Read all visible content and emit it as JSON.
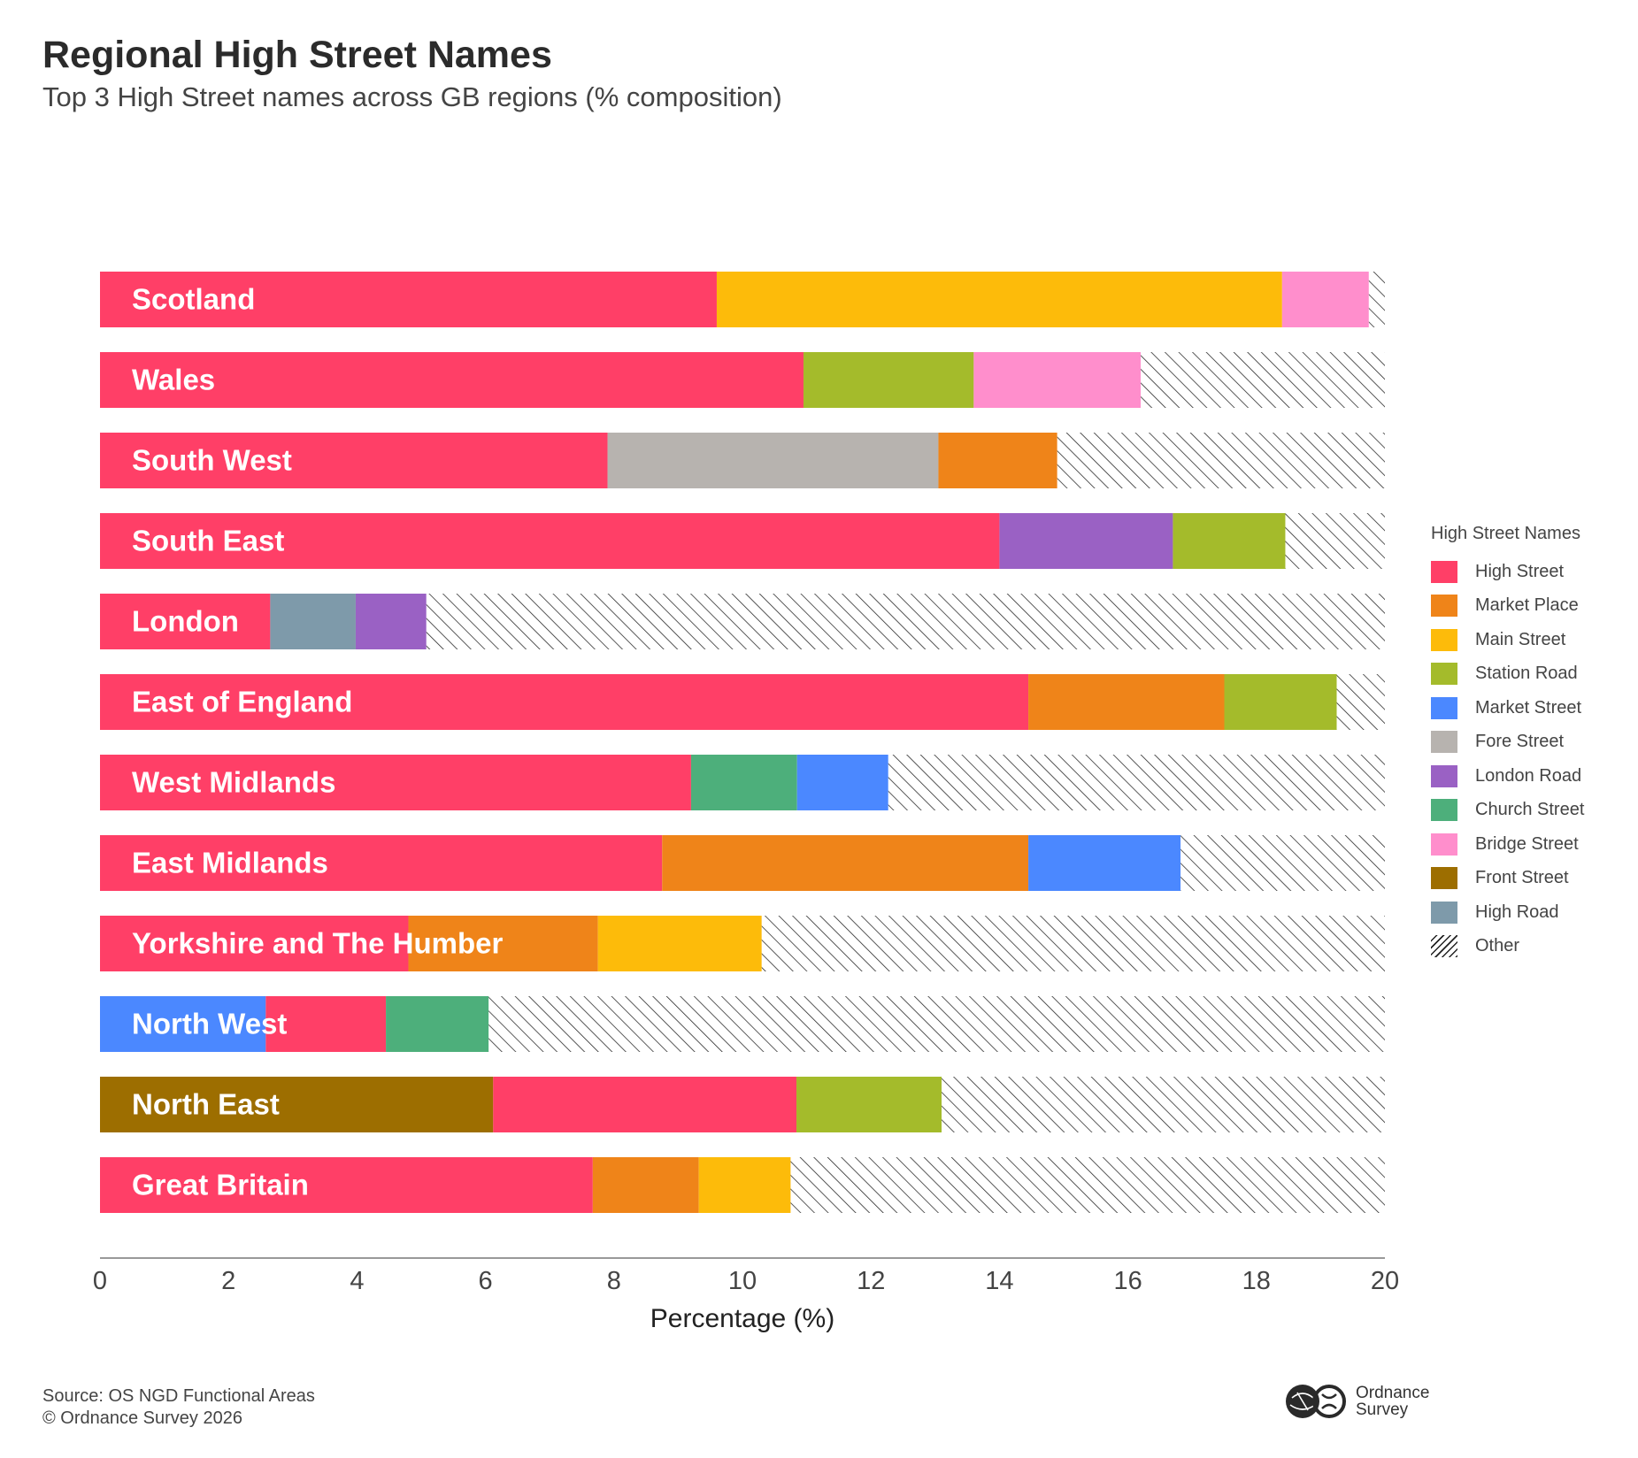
{
  "header": {
    "title": "Regional High Street Names",
    "subtitle": "Top 3 High Street names across GB regions (% composition)"
  },
  "footer": {
    "source_line1": "Source: OS NGD Functional Areas",
    "source_line2": "© Ordnance Survey 2026",
    "logo_line1": "Ordnance",
    "logo_line2": "Survey"
  },
  "legend": {
    "title": "High Street Names",
    "placement": "right",
    "items": [
      {
        "label": "High Street",
        "color": "#FF3F67"
      },
      {
        "label": "Market Place",
        "color": "#EF8419"
      },
      {
        "label": "Main Street",
        "color": "#FDBB0A"
      },
      {
        "label": "Station Road",
        "color": "#A4BB2B"
      },
      {
        "label": "Market Street",
        "color": "#4B88FF"
      },
      {
        "label": "Fore Street",
        "color": "#B7B3AF"
      },
      {
        "label": "London Road",
        "color": "#9A61C4"
      },
      {
        "label": "Church Street",
        "color": "#4DAF7B"
      },
      {
        "label": "Bridge Street",
        "color": "#FF8ECC"
      },
      {
        "label": "Front Street",
        "color": "#9D6E00"
      },
      {
        "label": "High Road",
        "color": "#7E9AAA"
      },
      {
        "label": "Other",
        "color": "hatch"
      }
    ]
  },
  "chart_data": {
    "type": "bar",
    "orientation": "horizontal",
    "stacked": true,
    "title": "Regional High Street Names",
    "subtitle": "Top 3 High Street names across GB regions (% composition)",
    "xlabel": "Percentage (%)",
    "ylabel": "",
    "xlim": [
      0,
      20
    ],
    "xticks": [
      0,
      2,
      4,
      6,
      8,
      10,
      12,
      14,
      16,
      18,
      20
    ],
    "grid": false,
    "colors": {
      "High Street": "#FF3F67",
      "Market Place": "#EF8419",
      "Main Street": "#FDBB0A",
      "Station Road": "#A4BB2B",
      "Market Street": "#4B88FF",
      "Fore Street": "#B7B3AF",
      "London Road": "#9A61C4",
      "Church Street": "#4DAF7B",
      "Bridge Street": "#FF8ECC",
      "Front Street": "#9D6E00",
      "High Road": "#7E9AAA"
    },
    "bars": [
      {
        "region": "Scotland",
        "segments": [
          {
            "name": "High Street",
            "value": 9.6
          },
          {
            "name": "Main Street",
            "value": 8.8
          },
          {
            "name": "Bridge Street",
            "value": 1.35
          },
          {
            "name": "Other",
            "value": 0.25
          }
        ]
      },
      {
        "region": "Wales",
        "segments": [
          {
            "name": "High Street",
            "value": 10.95
          },
          {
            "name": "Station Road",
            "value": 2.65
          },
          {
            "name": "Bridge Street",
            "value": 2.6
          },
          {
            "name": "Other",
            "value": 3.8
          }
        ]
      },
      {
        "region": "South West",
        "segments": [
          {
            "name": "High Street",
            "value": 7.9
          },
          {
            "name": "Fore Street",
            "value": 5.15
          },
          {
            "name": "Market Place",
            "value": 1.85
          },
          {
            "name": "Other",
            "value": 5.1
          }
        ]
      },
      {
        "region": "South East",
        "segments": [
          {
            "name": "High Street",
            "value": 14.0
          },
          {
            "name": "London Road",
            "value": 2.7
          },
          {
            "name": "Station Road",
            "value": 1.75
          },
          {
            "name": "Other",
            "value": 1.55
          }
        ]
      },
      {
        "region": "London",
        "segments": [
          {
            "name": "High Street",
            "value": 2.65
          },
          {
            "name": "High Road",
            "value": 1.33
          },
          {
            "name": "London Road",
            "value": 1.1
          },
          {
            "name": "Other",
            "value": 14.92
          }
        ]
      },
      {
        "region": "East of England",
        "segments": [
          {
            "name": "High Street",
            "value": 14.45
          },
          {
            "name": "Market Place",
            "value": 3.05
          },
          {
            "name": "Station Road",
            "value": 1.75
          },
          {
            "name": "Other",
            "value": 0.75
          }
        ]
      },
      {
        "region": "West Midlands",
        "segments": [
          {
            "name": "High Street",
            "value": 9.2
          },
          {
            "name": "Church Street",
            "value": 1.65
          },
          {
            "name": "Market Street",
            "value": 1.42
          },
          {
            "name": "Other",
            "value": 7.73
          }
        ]
      },
      {
        "region": "East Midlands",
        "segments": [
          {
            "name": "High Street",
            "value": 8.75
          },
          {
            "name": "Market Place",
            "value": 5.7
          },
          {
            "name": "Market Street",
            "value": 2.37
          },
          {
            "name": "Other",
            "value": 3.18
          }
        ]
      },
      {
        "region": "Yorkshire and The Humber",
        "segments": [
          {
            "name": "High Street",
            "value": 4.8
          },
          {
            "name": "Market Place",
            "value": 2.95
          },
          {
            "name": "Main Street",
            "value": 2.55
          },
          {
            "name": "Other",
            "value": 9.7
          }
        ]
      },
      {
        "region": "North West",
        "segments": [
          {
            "name": "Market Street",
            "value": 2.58
          },
          {
            "name": "High Street",
            "value": 1.87
          },
          {
            "name": "Church Street",
            "value": 1.6
          },
          {
            "name": "Other",
            "value": 13.95
          }
        ]
      },
      {
        "region": "North East",
        "segments": [
          {
            "name": "Front Street",
            "value": 6.12
          },
          {
            "name": "High Street",
            "value": 4.72
          },
          {
            "name": "Station Road",
            "value": 2.26
          },
          {
            "name": "Other",
            "value": 6.9
          }
        ]
      },
      {
        "region": "Great Britain",
        "segments": [
          {
            "name": "High Street",
            "value": 7.67
          },
          {
            "name": "Market Place",
            "value": 1.65
          },
          {
            "name": "Main Street",
            "value": 1.43
          },
          {
            "name": "Other",
            "value": 9.25
          }
        ]
      }
    ]
  }
}
